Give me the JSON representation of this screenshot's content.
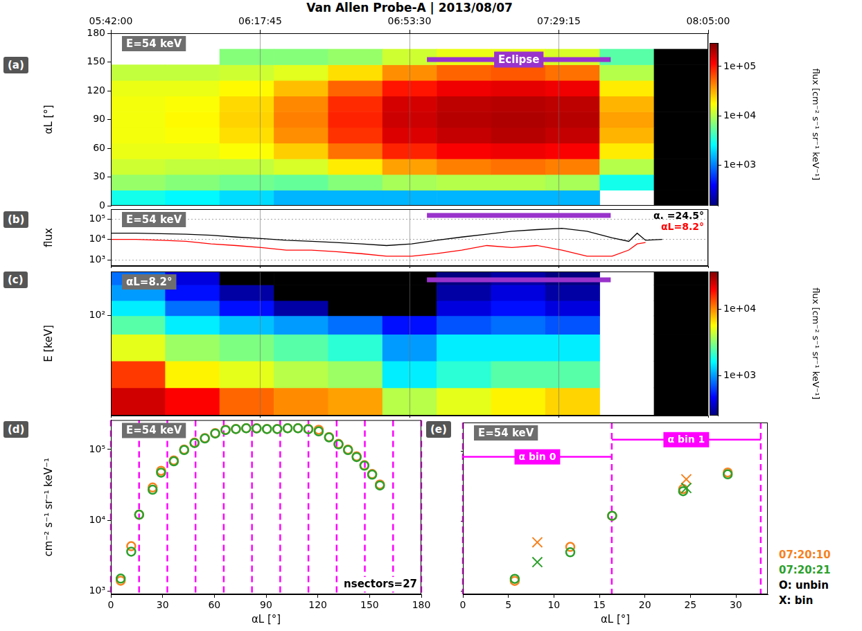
{
  "title": "Van Allen Probe-A | 2013/08/07",
  "chart_data": [
    {
      "panel": "(a)",
      "type": "heatmap",
      "title": "E=54 keV",
      "y_label": "αL [°]",
      "xlim": [
        "05:42:00",
        "08:05:00"
      ],
      "xticks": [
        "05:42:00",
        "06:17:45",
        "06:53:30",
        "07:29:15",
        "08:05:00"
      ],
      "ylim": [
        0,
        180
      ],
      "yticks": [
        0,
        30,
        60,
        90,
        120,
        150,
        180
      ],
      "grid": true,
      "x_edges": [
        "05:42:00",
        "05:55:00",
        "06:08:00",
        "06:21:00",
        "06:34:00",
        "06:47:00",
        "07:00:00",
        "07:13:00",
        "07:26:00",
        "07:39:00",
        "07:52:00",
        "08:05:00"
      ],
      "y_edges": [
        0,
        16.36,
        32.73,
        49.09,
        65.45,
        81.82,
        98.18,
        114.55,
        130.91,
        147.27,
        163.64,
        180
      ],
      "cells": [
        [
          3000,
          2500,
          2000,
          1500,
          1500,
          1500,
          1500,
          1500,
          1500,
          null,
          100
        ],
        [
          8000,
          7000,
          6000,
          5500,
          7000,
          9000,
          10000,
          10000,
          9000,
          3000,
          100
        ],
        [
          12000,
          11000,
          11000,
          13000,
          20000,
          35000,
          45000,
          50000,
          45000,
          10000,
          100
        ],
        [
          15000,
          15000,
          17000,
          25000,
          50000,
          90000,
          120000,
          130000,
          120000,
          20000,
          100
        ],
        [
          16000,
          17000,
          22000,
          40000,
          80000,
          150000,
          180000,
          200000,
          180000,
          30000,
          100
        ],
        [
          16000,
          18000,
          24000,
          45000,
          90000,
          170000,
          200000,
          210000,
          200000,
          35000,
          100
        ],
        [
          16000,
          17000,
          23000,
          42000,
          85000,
          160000,
          190000,
          200000,
          190000,
          30000,
          100
        ],
        [
          15000,
          15000,
          18000,
          28000,
          55000,
          100000,
          130000,
          140000,
          130000,
          20000,
          100
        ],
        [
          11000,
          11000,
          12000,
          14000,
          22000,
          40000,
          55000,
          60000,
          50000,
          10000,
          100
        ],
        [
          null,
          null,
          7000,
          7000,
          8000,
          12000,
          15000,
          15000,
          13000,
          5000,
          100
        ],
        [
          null,
          null,
          null,
          null,
          null,
          null,
          null,
          null,
          null,
          null,
          null
        ]
      ],
      "colorbar": {
        "label": "flux [cm⁻² s⁻¹ sr⁻¹ keV⁻¹]",
        "log": true,
        "range": [
          150,
          300000
        ],
        "ticks": [
          {
            "value": 1000,
            "label": "1e+03"
          },
          {
            "value": 10000,
            "label": "1e+04"
          },
          {
            "value": 100000,
            "label": "1e+05"
          }
        ]
      },
      "annotations": [
        {
          "text": "Eclipse",
          "x": [
            "06:57:40",
            "07:41:40"
          ]
        }
      ]
    },
    {
      "panel": "(b)",
      "type": "line",
      "title": "E=54 keV",
      "y_label": "flux",
      "log": "y",
      "tick_labels": "y",
      "grid": true,
      "legend": "upper right",
      "xlim": [
        "05:42:00",
        "08:05:00"
      ],
      "xticks": [
        "05:42:00",
        "06:17:45",
        "06:53:30",
        "07:29:15",
        "08:05:00"
      ],
      "ylim": [
        500,
        300000
      ],
      "yticks": [
        {
          "value": 1000,
          "label": "10³"
        },
        {
          "value": 10000,
          "label": "10⁴"
        },
        {
          "value": 100000,
          "label": "10⁵"
        }
      ],
      "x": [
        "05:42:00",
        "05:48:00",
        "05:54:00",
        "06:00:00",
        "06:06:00",
        "06:12:00",
        "06:18:00",
        "06:24:00",
        "06:30:00",
        "06:36:00",
        "06:42:00",
        "06:48:00",
        "06:54:00",
        "07:00:00",
        "07:06:00",
        "07:12:00",
        "07:18:00",
        "07:24:00",
        "07:30:00",
        "07:36:00",
        "07:42:00",
        "07:46:00",
        "07:48:00",
        "07:50:00",
        "07:54:00"
      ],
      "series": [
        {
          "name": "α. =24.5°",
          "color": "#000000",
          "values": [
            20000,
            20000,
            19000,
            18000,
            16000,
            13000,
            11000,
            9000,
            8000,
            7000,
            6000,
            5000,
            6000,
            9000,
            13000,
            18000,
            25000,
            30000,
            35000,
            25000,
            12000,
            8000,
            20000,
            9000,
            10000
          ]
        },
        {
          "name": "αL=8.2°",
          "color": "#ff0000",
          "values": [
            10000,
            10000,
            9000,
            8000,
            6000,
            5000,
            4000,
            3000,
            3000,
            2500,
            2000,
            1500,
            1500,
            2000,
            3000,
            5000,
            4000,
            5000,
            3000,
            1500,
            1500,
            3000,
            6000,
            7000,
            null
          ]
        }
      ],
      "annotations": [
        {
          "x": [
            "06:57:40",
            "07:41:40"
          ]
        }
      ]
    },
    {
      "panel": "(c)",
      "type": "heatmap",
      "title": "αL=8.2°",
      "y_label": "E [keV]",
      "log": "y",
      "tick_labels": "y",
      "grid": true,
      "xlim": [
        "05:42:00",
        "08:05:00"
      ],
      "xticks": [
        "05:42:00",
        "06:17:45",
        "06:53:30",
        "07:29:15",
        "08:05:00"
      ],
      "ylim": [
        30,
        170
      ],
      "yticks": [
        {
          "value": 100,
          "label": "10²"
        }
      ],
      "x_edges": [
        "05:42:00",
        "05:55:00",
        "06:08:00",
        "06:21:00",
        "06:34:00",
        "06:47:00",
        "07:00:00",
        "07:13:00",
        "07:26:00",
        "07:39:00",
        "07:52:00",
        "08:05:00"
      ],
      "y_edges": [
        30,
        42,
        58,
        80,
        100,
        120,
        145,
        170
      ],
      "cells": [
        [
          25000,
          20000,
          12000,
          10000,
          9000,
          4000,
          5000,
          6000,
          7000,
          null,
          200
        ],
        [
          15000,
          6000,
          5000,
          4000,
          3500,
          1500,
          2000,
          2500,
          2500,
          null,
          200
        ],
        [
          5000,
          3500,
          3000,
          2500,
          2000,
          1000,
          1500,
          1500,
          1500,
          null,
          200
        ],
        [
          2500,
          1500,
          1200,
          1000,
          800,
          500,
          700,
          800,
          700,
          null,
          200
        ],
        [
          1500,
          800,
          500,
          300,
          200,
          200,
          400,
          500,
          400,
          null,
          200
        ],
        [
          1000,
          500,
          300,
          200,
          200,
          200,
          300,
          400,
          300,
          null,
          200
        ],
        [
          800,
          400,
          200,
          200,
          200,
          200,
          250,
          300,
          250,
          null,
          200
        ]
      ],
      "colorbar": {
        "label": "flux [cm⁻² s⁻¹ sr⁻¹ keV⁻¹]",
        "log": true,
        "range": [
          250,
          37000
        ],
        "ticks": [
          {
            "value": 1000,
            "label": "1e+03"
          },
          {
            "value": 10000,
            "label": "1e+04"
          }
        ]
      },
      "annotations": [
        {
          "x": [
            "06:57:40",
            "07:41:40"
          ]
        }
      ]
    },
    {
      "panel": "(d)",
      "type": "scatter",
      "title": "E=54 keV",
      "x_label": "αL [°]",
      "y_label": "cm⁻² s⁻¹ sr⁻¹ keV⁻¹",
      "log": "y",
      "grid": false,
      "xlim": [
        0,
        180
      ],
      "xticks": [
        0,
        30,
        60,
        90,
        120,
        150,
        180
      ],
      "ylim": [
        900,
        260000
      ],
      "yticks": [
        {
          "value": 1000,
          "label": "10³"
        },
        {
          "value": 10000,
          "label": "10⁴"
        },
        {
          "value": 100000,
          "label": "10⁵"
        }
      ],
      "x": [
        5.7,
        11.8,
        16.4,
        24.2,
        29.1,
        36.5,
        42.5,
        48.5,
        54.5,
        60.5,
        66.5,
        72.5,
        78.5,
        84.5,
        90.5,
        96.5,
        102.5,
        108.5,
        114.5,
        120.5,
        126.5,
        132,
        137.5,
        142.5,
        147,
        151.5,
        156
      ],
      "series": [
        {
          "color": "#f5821f",
          "marker": "circle",
          "values": [
            1400,
            4300,
            12000,
            29000,
            50000,
            70000,
            100000,
            125000,
            145000,
            170000,
            190000,
            195000,
            200000,
            200000,
            195000,
            195000,
            200000,
            200000,
            195000,
            190000,
            150000,
            120000,
            100000,
            80000,
            60000,
            45000,
            32000
          ]
        },
        {
          "color": "#2ca02c",
          "marker": "circle",
          "values": [
            1500,
            3600,
            12000,
            27000,
            47000,
            68000,
            98000,
            123000,
            143000,
            168000,
            188000,
            194000,
            199000,
            198000,
            194000,
            194000,
            199000,
            199000,
            193000,
            180000,
            148000,
            118000,
            98000,
            78000,
            59000,
            44000,
            31000
          ]
        }
      ],
      "dividers": [
        0,
        16.36,
        32.73,
        49.09,
        65.45,
        81.82,
        98.18,
        114.55,
        130.91,
        147.27,
        163.64,
        180
      ],
      "annotations": [
        {
          "text": "nsectors=27"
        }
      ]
    },
    {
      "panel": "(e)",
      "type": "scatter",
      "title": "E=54 keV",
      "x_label": "αL [°]",
      "log": "y",
      "grid": false,
      "tick_labels": "x",
      "legend": "right",
      "xlim": [
        0,
        33.5
      ],
      "xticks": [
        0,
        5,
        10,
        15,
        20,
        25,
        30
      ],
      "ylim": [
        900,
        260000
      ],
      "yticks": [
        1000,
        10000,
        100000
      ],
      "series": [
        {
          "name": "07:20:10",
          "color": "#f5821f",
          "marker": "circle",
          "x": [
            5.7,
            11.8,
            16.4,
            24.2,
            29.1
          ],
          "values": [
            1400,
            4300,
            12000,
            29000,
            50000
          ]
        },
        {
          "name": "07:20:21",
          "color": "#2ca02c",
          "marker": "circle",
          "x": [
            5.7,
            11.8,
            16.4,
            24.2,
            29.1
          ],
          "values": [
            1500,
            3600,
            12000,
            27000,
            47000
          ]
        },
        {
          "name": "07:20:10",
          "color": "#f5821f",
          "marker": "cross",
          "x": [
            8.18,
            24.55
          ],
          "values": [
            5000,
            40000
          ]
        },
        {
          "name": "07:20:21",
          "color": "#2ca02c",
          "marker": "cross",
          "x": [
            8.18,
            24.55
          ],
          "values": [
            2600,
            30000
          ]
        }
      ],
      "dividers": [
        0,
        16.36,
        32.73
      ],
      "bins": [
        {
          "text": "α bin 0",
          "x": [
            0,
            16.36
          ]
        },
        {
          "text": "α bin 1",
          "x": [
            16.36,
            32.73
          ]
        }
      ],
      "annotations": [
        {
          "text": "O: unbin"
        },
        {
          "text": "X: bin"
        }
      ]
    }
  ]
}
